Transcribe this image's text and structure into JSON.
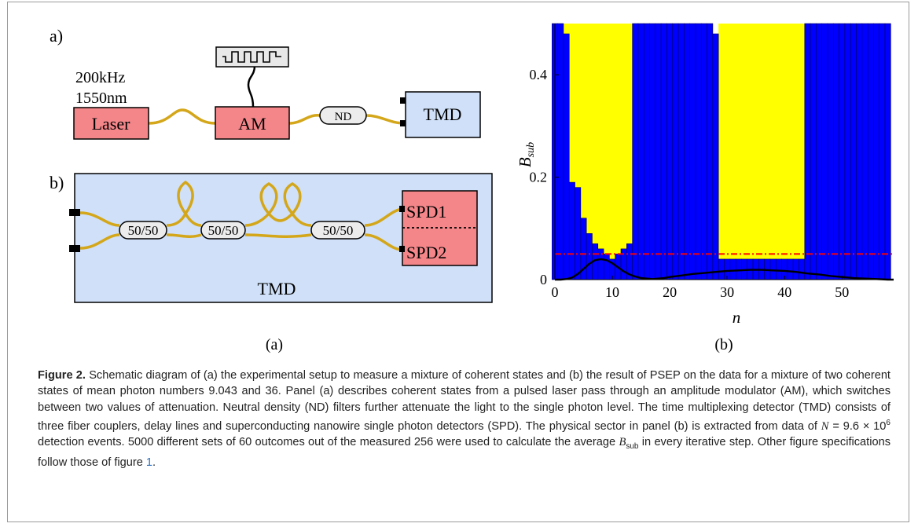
{
  "panel_a": {
    "label_a": "a)",
    "label_b": "b)",
    "laser_rate": "200kHz",
    "laser_wavelength": "1550nm",
    "laser_label": "Laser",
    "am_label": "AM",
    "nd_label": "ND",
    "tmd_label": "TMD",
    "coupler_labels": [
      "50/50",
      "50/50",
      "50/50"
    ],
    "spd1_label": "SPD1",
    "spd2_label": "SPD2",
    "tmd_box_label": "TMD",
    "subcaption": "(a)"
  },
  "panel_b": {
    "subcaption": "(b)"
  },
  "chart_data": {
    "type": "bar",
    "xlabel": "n",
    "ylabel": "B_sub",
    "xlim": [
      0,
      59
    ],
    "ylim": [
      0,
      0.5
    ],
    "xticks": [
      "0",
      "10",
      "20",
      "30",
      "40",
      "50"
    ],
    "yticks": [
      "0",
      "0.2",
      "0.4"
    ],
    "colors": {
      "bars": "#0000ff",
      "physical_sector": "#ffff00",
      "threshold": "#ff0000",
      "curve": "#000000"
    },
    "threshold": 0.05,
    "physical_sectors": [
      [
        1.5,
        14
      ],
      [
        28.5,
        44.5
      ]
    ],
    "values": [
      0.5,
      0.5,
      0.48,
      0.19,
      0.18,
      0.12,
      0.09,
      0.07,
      0.06,
      0.05,
      0.04,
      0.05,
      0.06,
      0.07,
      0.5,
      0.5,
      0.5,
      0.5,
      0.5,
      0.5,
      0.5,
      0.5,
      0.5,
      0.5,
      0.5,
      0.5,
      0.5,
      0.5,
      0.48,
      0.04,
      0.04,
      0.04,
      0.04,
      0.04,
      0.04,
      0.04,
      0.04,
      0.04,
      0.04,
      0.04,
      0.04,
      0.04,
      0.04,
      0.04,
      0.5,
      0.5,
      0.5,
      0.5,
      0.5,
      0.5,
      0.5,
      0.5,
      0.5,
      0.5,
      0.5,
      0.5,
      0.5,
      0.5,
      0.5
    ],
    "curve": {
      "x": [
        0,
        1,
        2,
        3,
        4,
        5,
        6,
        7,
        8,
        9,
        10,
        11,
        12,
        13,
        14,
        15,
        16,
        17,
        18,
        19,
        20,
        22,
        24,
        26,
        28,
        30,
        32,
        34,
        36,
        38,
        40,
        42,
        44,
        46,
        48,
        50,
        52,
        54,
        56,
        58,
        59
      ],
      "y": [
        0.0,
        0.0,
        0.001,
        0.004,
        0.011,
        0.021,
        0.031,
        0.038,
        0.04,
        0.038,
        0.032,
        0.024,
        0.016,
        0.01,
        0.006,
        0.003,
        0.002,
        0.001,
        0.002,
        0.003,
        0.005,
        0.008,
        0.011,
        0.013,
        0.015,
        0.017,
        0.018,
        0.019,
        0.019,
        0.018,
        0.017,
        0.015,
        0.012,
        0.01,
        0.007,
        0.005,
        0.003,
        0.002,
        0.001,
        0.0,
        0.0
      ]
    }
  },
  "caption": {
    "fig_label": "Figure 2.",
    "part1": " Schematic diagram of (a) the experimental setup to measure a mixture of coherent states and (b) the result of PSEP on the data for a mixture of two coherent states of mean photon numbers 9.043 and 36. Panel  (a) describes coherent states from a pulsed laser pass through an amplitude modulator (AM), which switches between two values of attenuation. Neutral density (ND) filters further attenuate the light to the single photon level. The time multiplexing detector (TMD) consists of three fiber couplers, delay lines and superconducting nanowire single photon detectors (SPD). The physical sector in panel (b) is extracted from data of ",
    "n_var": "N",
    "n_eq": " = 9.6 × 10",
    "n_exp": "6",
    "part2": " detection events. 5000 different sets of 60 outcomes out of the measured 256 were used to calculate the average ",
    "b_var": "B",
    "b_sub": "sub",
    "part3": " in every iterative step. Other figure specifications follow those of figure ",
    "ref": "1",
    "part4": "."
  }
}
